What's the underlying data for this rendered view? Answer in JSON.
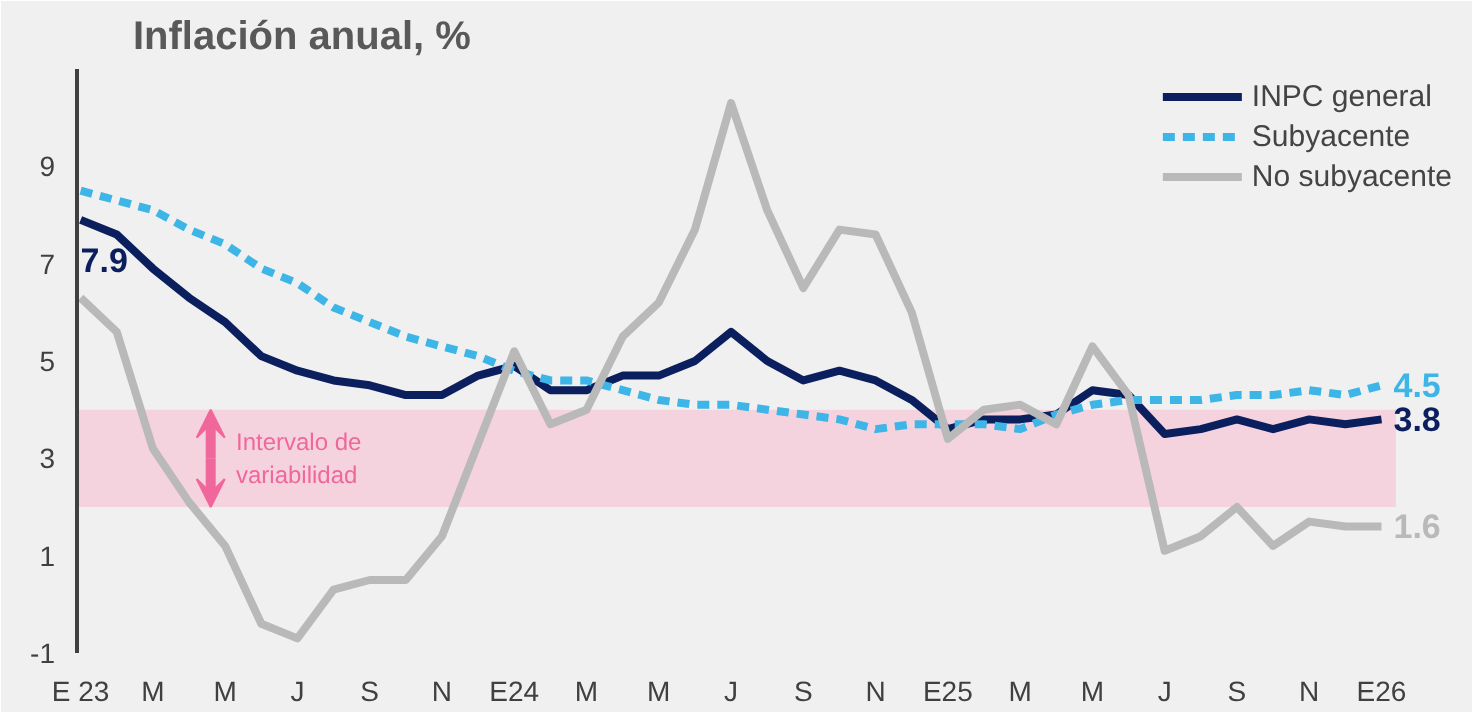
{
  "chart_data": {
    "type": "line",
    "title": "Inflación anual, %",
    "categories": [
      "E 23",
      null,
      "M",
      null,
      "M",
      null,
      "J",
      null,
      "S",
      null,
      "N",
      null,
      "E24",
      null,
      "M",
      null,
      "M",
      null,
      "J",
      null,
      "S",
      null,
      "N",
      null,
      "E25",
      null,
      "M",
      null,
      "M",
      null,
      "J",
      null,
      "S",
      null,
      "N",
      null,
      "E26"
    ],
    "series": [
      {
        "name": "INPC general",
        "color": "#0b1f5e",
        "line_style": "solid",
        "values": [
          7.9,
          7.6,
          6.9,
          6.3,
          5.8,
          5.1,
          4.8,
          4.6,
          4.5,
          4.3,
          4.3,
          4.7,
          4.9,
          4.4,
          4.4,
          4.7,
          4.7,
          5.0,
          5.6,
          5.0,
          4.6,
          4.8,
          4.6,
          4.2,
          3.6,
          3.8,
          3.8,
          3.9,
          4.4,
          4.3,
          3.5,
          3.6,
          3.8,
          3.6,
          3.8,
          3.7,
          3.8
        ],
        "value_labels": [
          "7.9",
          null,
          null,
          null,
          null,
          null,
          null,
          null,
          null,
          null,
          null,
          null,
          null,
          null,
          null,
          null,
          null,
          null,
          null,
          null,
          null,
          null,
          null,
          null,
          null,
          null,
          null,
          null,
          null,
          null,
          null,
          null,
          null,
          null,
          null,
          null,
          "3.8"
        ]
      },
      {
        "name": "Subyacente",
        "color": "#3db5e6",
        "line_style": "dashed",
        "values": [
          8.5,
          8.3,
          8.1,
          7.7,
          7.4,
          6.9,
          6.6,
          6.1,
          5.8,
          5.5,
          5.3,
          5.1,
          4.8,
          4.6,
          4.6,
          4.4,
          4.2,
          4.1,
          4.1,
          4.0,
          3.9,
          3.8,
          3.6,
          3.7,
          3.7,
          3.7,
          3.6,
          3.9,
          4.1,
          4.2,
          4.2,
          4.2,
          4.3,
          4.3,
          4.4,
          4.3,
          4.5
        ],
        "value_labels": [
          null,
          null,
          null,
          null,
          null,
          null,
          null,
          null,
          null,
          null,
          null,
          null,
          null,
          null,
          null,
          null,
          null,
          null,
          null,
          null,
          null,
          null,
          null,
          null,
          null,
          null,
          null,
          null,
          null,
          null,
          null,
          null,
          null,
          null,
          null,
          null,
          "4.5"
        ]
      },
      {
        "name": "No subyacente",
        "color": "#b9b9b9",
        "line_style": "solid",
        "values": [
          6.3,
          5.6,
          3.2,
          2.1,
          1.2,
          -0.4,
          -0.7,
          0.3,
          0.5,
          0.5,
          1.4,
          3.3,
          5.2,
          3.7,
          4.0,
          5.5,
          6.2,
          7.7,
          10.3,
          8.1,
          6.5,
          7.7,
          7.6,
          6.0,
          3.4,
          4.0,
          4.1,
          3.7,
          5.3,
          4.3,
          1.1,
          1.4,
          2.0,
          1.2,
          1.7,
          1.6,
          1.6
        ],
        "value_labels": [
          null,
          null,
          null,
          null,
          null,
          null,
          null,
          null,
          null,
          null,
          null,
          null,
          null,
          null,
          null,
          null,
          null,
          null,
          null,
          null,
          null,
          null,
          null,
          null,
          null,
          null,
          null,
          null,
          null,
          null,
          null,
          null,
          null,
          null,
          null,
          null,
          "1.6"
        ]
      }
    ],
    "ylim": [
      -1,
      11
    ],
    "yticks": [
      -1,
      1,
      3,
      5,
      7,
      9
    ],
    "grid": false,
    "legend": "top right",
    "bands": [
      {
        "axis": "y",
        "from": 2,
        "to": 4,
        "label": "Intervalo de variabilidad",
        "color": "#f5d3de"
      }
    ]
  }
}
